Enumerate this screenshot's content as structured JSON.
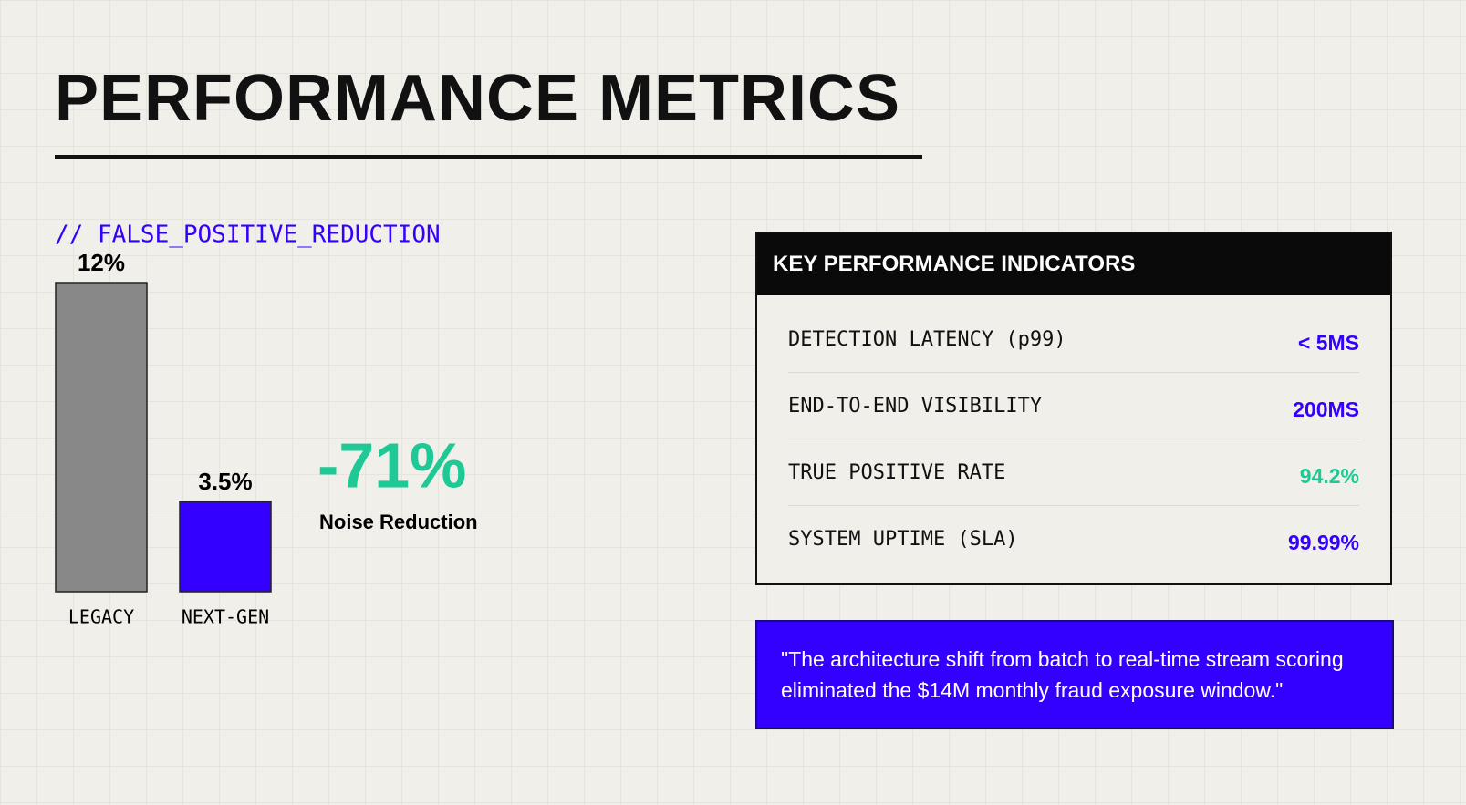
{
  "title": "PERFORMANCE METRICS",
  "chart_data": {
    "type": "bar",
    "title": "// FALSE_POSITIVE_REDUCTION",
    "categories": [
      "LEGACY",
      "NEXT-GEN"
    ],
    "values": [
      12,
      3.5
    ],
    "value_labels": [
      "12%",
      "3.5%"
    ],
    "colors": [
      "#888888",
      "#3300ff"
    ],
    "annotation": {
      "text": "-71%",
      "caption": "Noise Reduction",
      "color": "#1ec995"
    }
  },
  "kpi": {
    "title": "KEY PERFORMANCE INDICATORS",
    "rows": [
      {
        "label": "DETECTION LATENCY (p99)",
        "value": "< 5MS",
        "color": "#3300ff"
      },
      {
        "label": "END-TO-END VISIBILITY",
        "value": "200MS",
        "color": "#3300ff"
      },
      {
        "label": "TRUE POSITIVE RATE",
        "value": "94.2%",
        "color": "#1ec995"
      },
      {
        "label": "SYSTEM UPTIME (SLA)",
        "value": "99.99%",
        "color": "#3300ff"
      }
    ]
  },
  "quote": "\"The architecture shift from batch to real-time stream scoring eliminated the $14M monthly fraud exposure window.\""
}
